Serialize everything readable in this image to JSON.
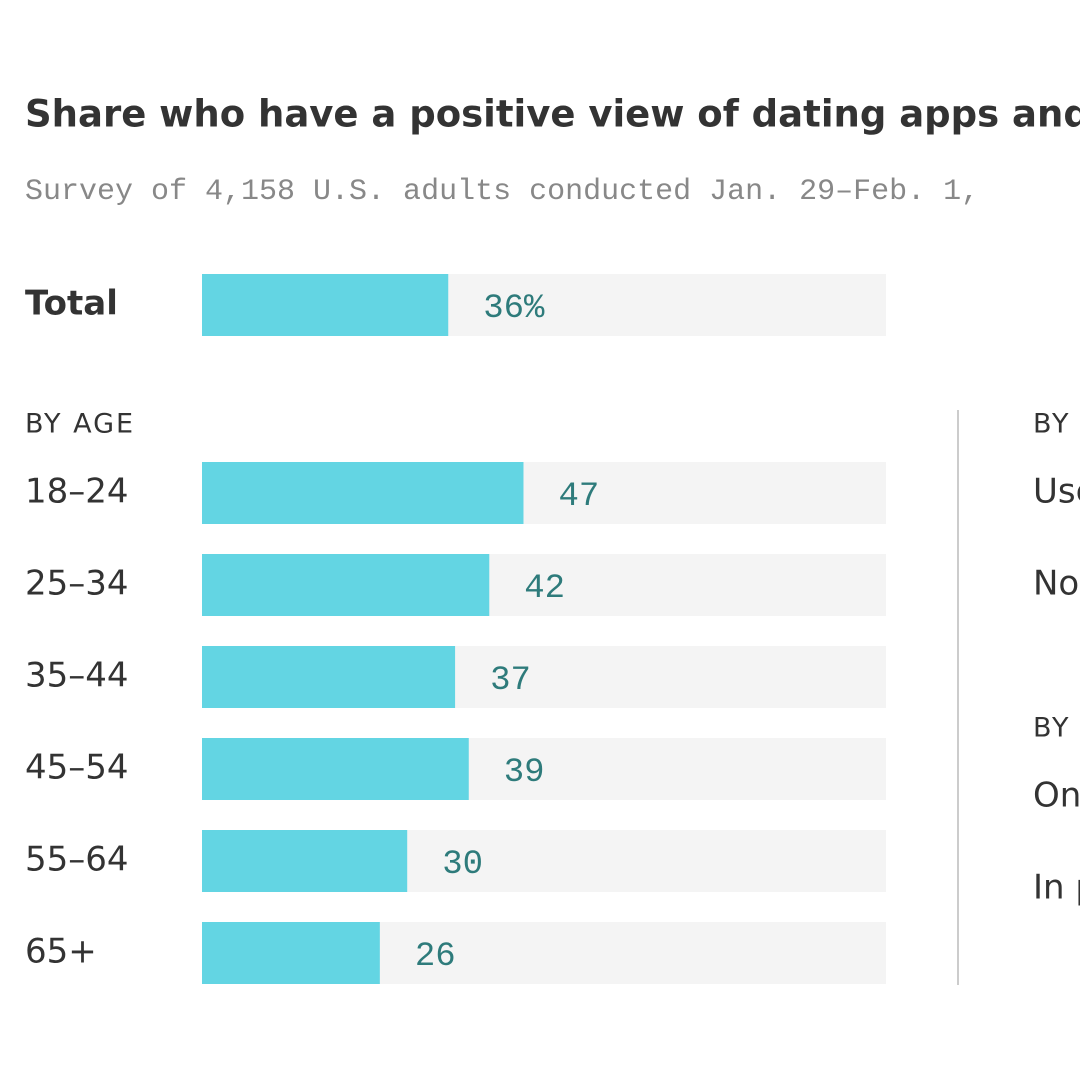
{
  "chart_data": {
    "type": "bar",
    "title": "Share who have a positive view of dating apps and onli",
    "subtitle": "Survey of 4,158 U.S. adults conducted Jan. 29–Feb. 1,",
    "color": "#63d5e3",
    "track_color": "#f4f4f4",
    "xlim": [
      0,
      100
    ],
    "categories": [
      "Total"
    ],
    "values": [
      36
    ],
    "value_labels": [
      "36%"
    ],
    "sections": [
      {
        "title": "BY AGE",
        "categories": [
          "18–24",
          "25–34",
          "35–44",
          "45–54",
          "55–64",
          "65+"
        ],
        "values": [
          47,
          42,
          37,
          39,
          30,
          26
        ]
      }
    ],
    "side_panel": {
      "headings": [
        "BY",
        "BY"
      ],
      "labels": [
        "Use",
        "No",
        "On",
        "In p"
      ]
    }
  }
}
